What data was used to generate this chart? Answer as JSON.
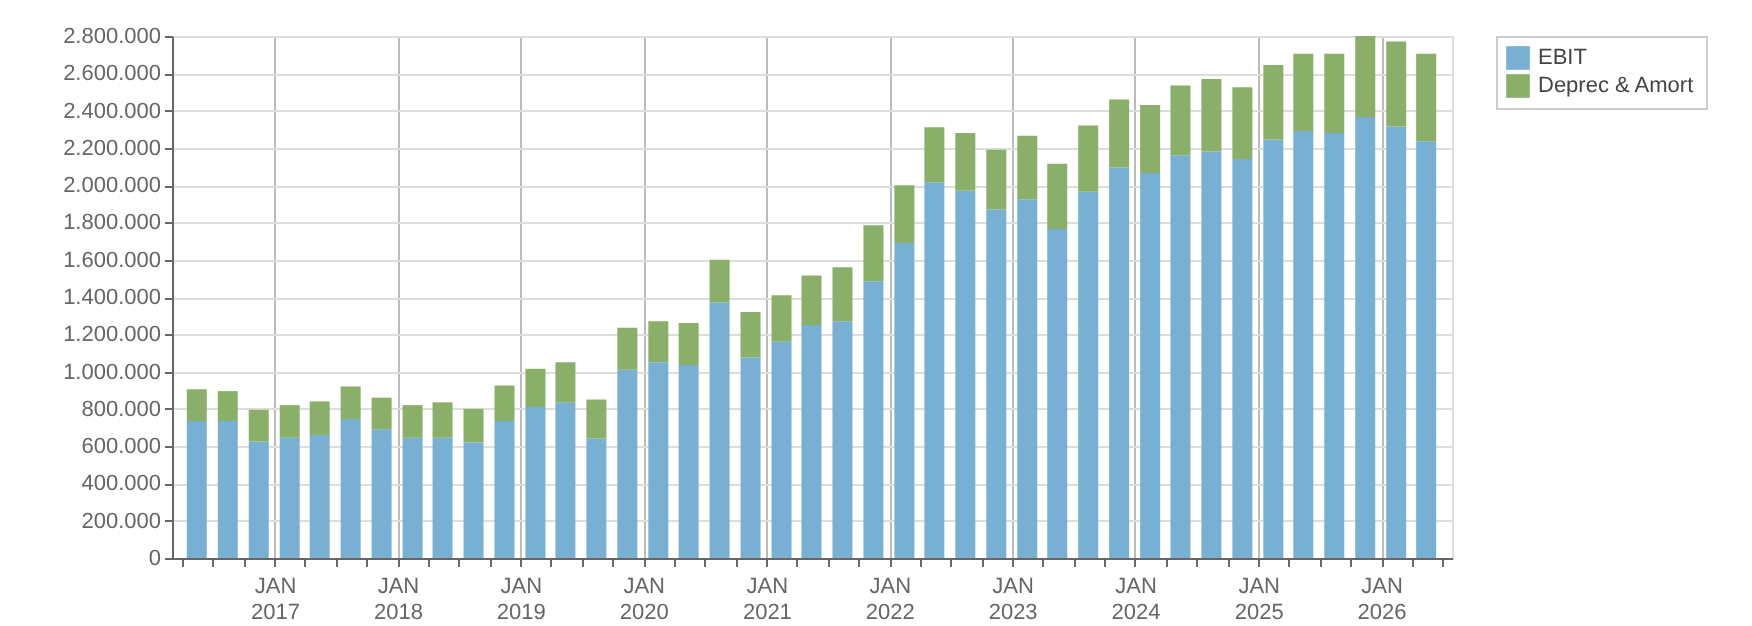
{
  "chart_data": {
    "type": "bar",
    "stacked": true,
    "x": [
      "2016-05-15",
      "2016-08-15",
      "2016-11-15",
      "2017-02-15",
      "2017-05-15",
      "2017-08-15",
      "2017-11-15",
      "2018-02-15",
      "2018-05-15",
      "2018-08-15",
      "2018-11-15",
      "2019-02-15",
      "2019-05-15",
      "2019-08-15",
      "2019-11-15",
      "2020-02-15",
      "2020-05-15",
      "2020-08-15",
      "2020-11-15",
      "2021-02-15",
      "2021-05-15",
      "2021-08-15",
      "2021-11-15",
      "2022-02-15",
      "2022-05-15",
      "2022-08-15",
      "2022-11-15",
      "2023-02-15",
      "2023-05-15",
      "2023-08-15",
      "2023-11-15",
      "2024-02-15",
      "2024-05-15",
      "2024-08-15",
      "2024-11-15",
      "2025-02-15",
      "2025-05-15",
      "2025-08-15",
      "2025-11-15",
      "2026-02-15",
      "2026-05-15"
    ],
    "series": [
      {
        "name": "EBIT",
        "color": "#78b0d3",
        "values": [
          735000,
          735000,
          625000,
          645000,
          660000,
          745000,
          690000,
          645000,
          645000,
          620000,
          735000,
          810000,
          835000,
          640000,
          1010000,
          1050000,
          1035000,
          1370000,
          1075000,
          1160000,
          1250000,
          1270000,
          1485000,
          1690000,
          2015000,
          1970000,
          1870000,
          1925000,
          1765000,
          1965000,
          2095000,
          2065000,
          2160000,
          2180000,
          2140000,
          2245000,
          2290000,
          2280000,
          2365000,
          2315000,
          2235000
        ]
      },
      {
        "name": "Deprec & Amort",
        "color": "#89af69",
        "values": [
          170000,
          160000,
          170000,
          175000,
          180000,
          175000,
          170000,
          175000,
          190000,
          180000,
          190000,
          205000,
          215000,
          210000,
          225000,
          220000,
          225000,
          230000,
          245000,
          250000,
          265000,
          290000,
          300000,
          310000,
          295000,
          310000,
          320000,
          340000,
          350000,
          355000,
          365000,
          365000,
          375000,
          390000,
          385000,
          400000,
          415000,
          425000,
          435000,
          455000,
          470000
        ]
      }
    ],
    "xlim": [
      "2016-04-01",
      "2026-07-01"
    ],
    "xticks": [
      {
        "value": "2016-04-01",
        "label": null
      },
      {
        "value": "2016-07-01",
        "label": null
      },
      {
        "value": "2016-10-01",
        "label": null
      },
      {
        "value": "2017-01-01",
        "label": "JAN\n2017"
      },
      {
        "value": "2017-04-01",
        "label": null
      },
      {
        "value": "2017-07-01",
        "label": null
      },
      {
        "value": "2017-10-01",
        "label": null
      },
      {
        "value": "2018-01-01",
        "label": "JAN\n2018"
      },
      {
        "value": "2018-04-01",
        "label": null
      },
      {
        "value": "2018-07-01",
        "label": null
      },
      {
        "value": "2018-10-01",
        "label": null
      },
      {
        "value": "2019-01-01",
        "label": "JAN\n2019"
      },
      {
        "value": "2019-04-01",
        "label": null
      },
      {
        "value": "2019-07-01",
        "label": null
      },
      {
        "value": "2019-10-01",
        "label": null
      },
      {
        "value": "2020-01-01",
        "label": "JAN\n2020"
      },
      {
        "value": "2020-04-01",
        "label": null
      },
      {
        "value": "2020-07-01",
        "label": null
      },
      {
        "value": "2020-10-01",
        "label": null
      },
      {
        "value": "2021-01-01",
        "label": "JAN\n2021"
      },
      {
        "value": "2021-04-01",
        "label": null
      },
      {
        "value": "2021-07-01",
        "label": null
      },
      {
        "value": "2021-10-01",
        "label": null
      },
      {
        "value": "2022-01-01",
        "label": "JAN\n2022"
      },
      {
        "value": "2022-04-01",
        "label": null
      },
      {
        "value": "2022-07-01",
        "label": null
      },
      {
        "value": "2022-10-01",
        "label": null
      },
      {
        "value": "2023-01-01",
        "label": "JAN\n2023"
      },
      {
        "value": "2023-04-01",
        "label": null
      },
      {
        "value": "2023-07-01",
        "label": null
      },
      {
        "value": "2023-10-01",
        "label": null
      },
      {
        "value": "2024-01-01",
        "label": "JAN\n2024"
      },
      {
        "value": "2024-04-01",
        "label": null
      },
      {
        "value": "2024-07-01",
        "label": null
      },
      {
        "value": "2024-10-01",
        "label": null
      },
      {
        "value": "2025-01-01",
        "label": "JAN\n2025"
      },
      {
        "value": "2025-04-01",
        "label": null
      },
      {
        "value": "2025-07-01",
        "label": null
      },
      {
        "value": "2025-10-01",
        "label": null
      },
      {
        "value": "2026-01-01",
        "label": "JAN\n2026"
      },
      {
        "value": "2026-04-01",
        "label": null
      },
      {
        "value": "2026-07-01",
        "label": null
      }
    ],
    "ylim": [
      0,
      2800000
    ],
    "yticks": [
      {
        "value": 0,
        "label": "0"
      },
      {
        "value": 200000,
        "label": "200.000"
      },
      {
        "value": 400000,
        "label": "400.000"
      },
      {
        "value": 600000,
        "label": "600.000"
      },
      {
        "value": 800000,
        "label": "800.000"
      },
      {
        "value": 1000000,
        "label": "1.000.000"
      },
      {
        "value": 1200000,
        "label": "1.200.000"
      },
      {
        "value": 1400000,
        "label": "1.400.000"
      },
      {
        "value": 1600000,
        "label": "1.600.000"
      },
      {
        "value": 1800000,
        "label": "1.800.000"
      },
      {
        "value": 2000000,
        "label": "2.000.000"
      },
      {
        "value": 2200000,
        "label": "2.200.000"
      },
      {
        "value": 2400000,
        "label": "2.400.000"
      },
      {
        "value": 2600000,
        "label": "2.600.000"
      },
      {
        "value": 2800000,
        "label": "2.800.000"
      }
    ],
    "grid": true,
    "legend": "right"
  }
}
